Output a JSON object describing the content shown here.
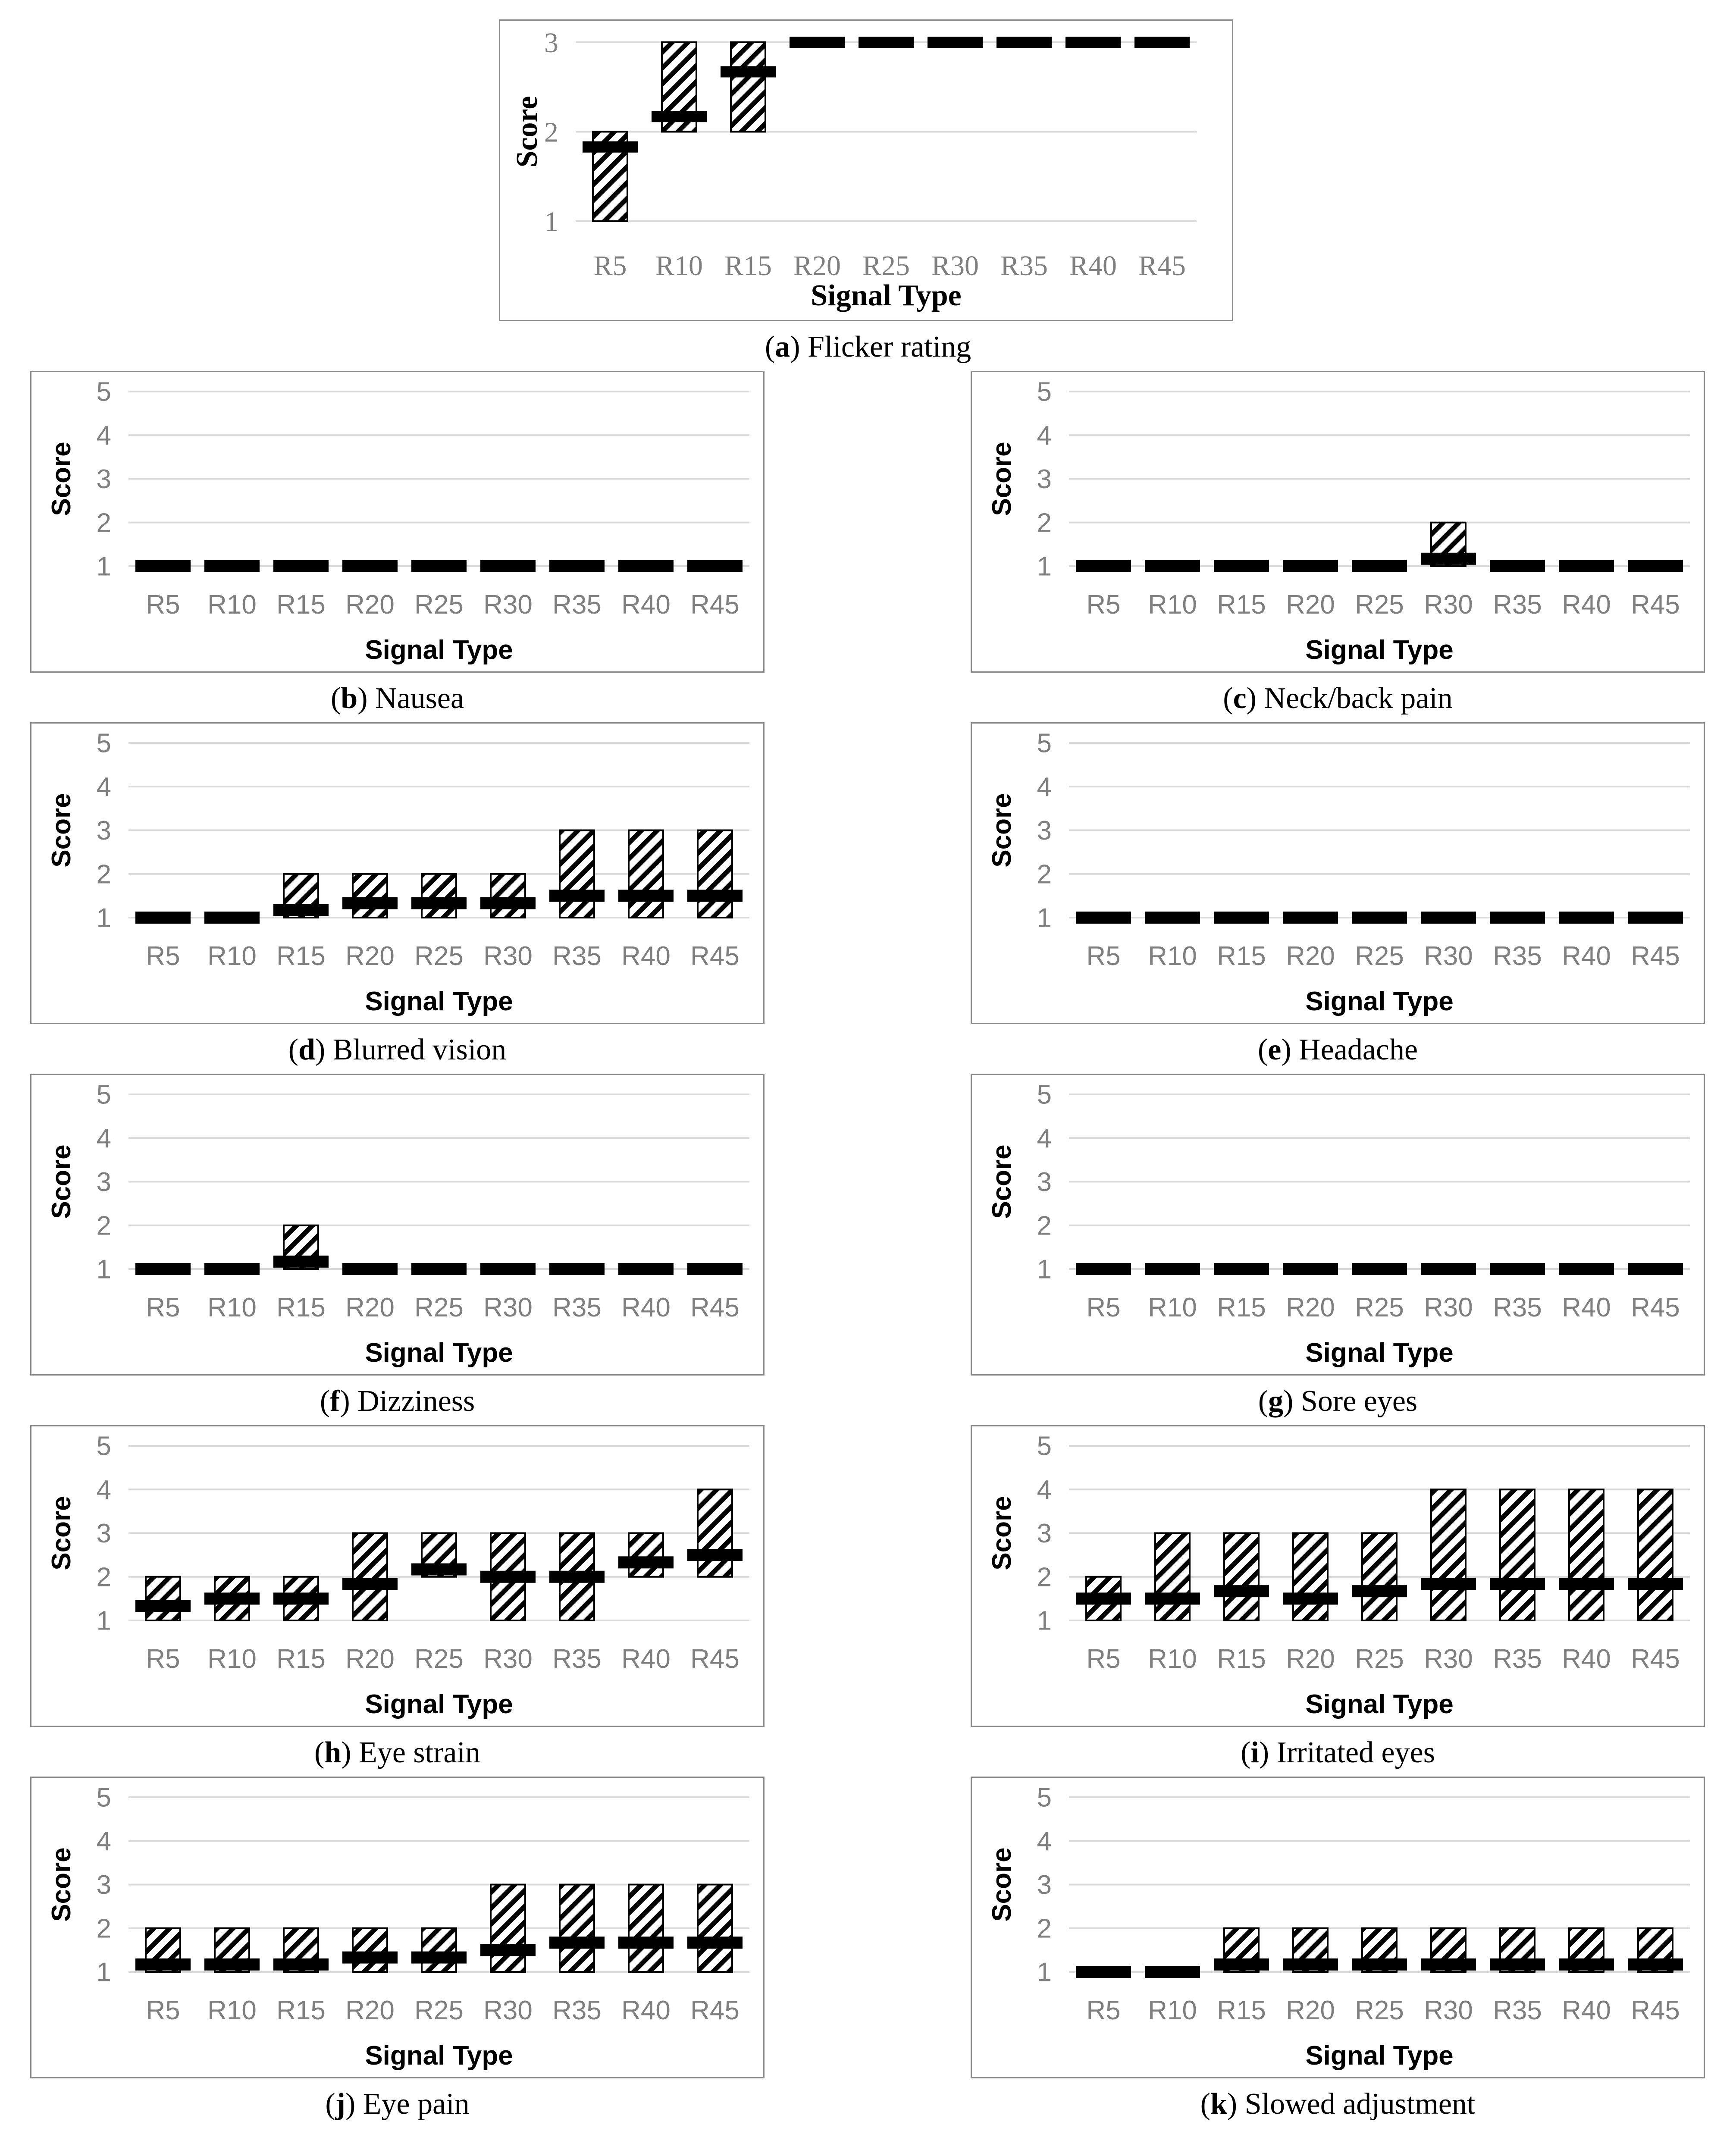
{
  "chart_data": [
    {
      "id": "a",
      "letter": "a",
      "name": "Flicker rating",
      "type": "range-bar",
      "categories": [
        "R5",
        "R10",
        "R15",
        "R20",
        "R25",
        "R30",
        "R35",
        "R40",
        "R45"
      ],
      "range_low": [
        1,
        2,
        2,
        3,
        3,
        3,
        3,
        3,
        3
      ],
      "range_high": [
        2,
        3,
        3,
        3,
        3,
        3,
        3,
        3,
        3
      ],
      "mean": [
        1.83,
        2.17,
        2.67,
        3,
        3,
        3,
        3,
        3,
        3
      ],
      "ylim": [
        1,
        3
      ],
      "yticks": [
        1,
        2,
        3
      ],
      "xlabel": "Signal Type",
      "ylabel": "Score"
    },
    {
      "id": "b",
      "letter": "b",
      "name": "Nausea",
      "type": "range-bar",
      "categories": [
        "R5",
        "R10",
        "R15",
        "R20",
        "R25",
        "R30",
        "R35",
        "R40",
        "R45"
      ],
      "range_low": [
        1,
        1,
        1,
        1,
        1,
        1,
        1,
        1,
        1
      ],
      "range_high": [
        1,
        1,
        1,
        1,
        1,
        1,
        1,
        1,
        1
      ],
      "mean": [
        1,
        1,
        1,
        1,
        1,
        1,
        1,
        1,
        1
      ],
      "ylim": [
        1,
        5
      ],
      "yticks": [
        1,
        2,
        3,
        4,
        5
      ],
      "xlabel": "Signal Type",
      "ylabel": "Score"
    },
    {
      "id": "c",
      "letter": "c",
      "name": "Neck/back pain",
      "type": "range-bar",
      "categories": [
        "R5",
        "R10",
        "R15",
        "R20",
        "R25",
        "R30",
        "R35",
        "R40",
        "R45"
      ],
      "range_low": [
        1,
        1,
        1,
        1,
        1,
        1,
        1,
        1,
        1
      ],
      "range_high": [
        1,
        1,
        1,
        1,
        1,
        2,
        1,
        1,
        1
      ],
      "mean": [
        1,
        1,
        1,
        1,
        1,
        1.17,
        1,
        1,
        1
      ],
      "ylim": [
        1,
        5
      ],
      "yticks": [
        1,
        2,
        3,
        4,
        5
      ],
      "xlabel": "Signal Type",
      "ylabel": "Score"
    },
    {
      "id": "d",
      "letter": "d",
      "name": "Blurred vision",
      "type": "range-bar",
      "categories": [
        "R5",
        "R10",
        "R15",
        "R20",
        "R25",
        "R30",
        "R35",
        "R40",
        "R45"
      ],
      "range_low": [
        1,
        1,
        1,
        1,
        1,
        1,
        1,
        1,
        1
      ],
      "range_high": [
        1,
        1,
        2,
        2,
        2,
        2,
        3,
        3,
        3
      ],
      "mean": [
        1,
        1,
        1.17,
        1.33,
        1.33,
        1.33,
        1.5,
        1.5,
        1.5
      ],
      "ylim": [
        1,
        5
      ],
      "yticks": [
        1,
        2,
        3,
        4,
        5
      ],
      "xlabel": "Signal Type",
      "ylabel": "Score"
    },
    {
      "id": "e",
      "letter": "e",
      "name": "Headache",
      "type": "range-bar",
      "categories": [
        "R5",
        "R10",
        "R15",
        "R20",
        "R25",
        "R30",
        "R35",
        "R40",
        "R45"
      ],
      "range_low": [
        1,
        1,
        1,
        1,
        1,
        1,
        1,
        1,
        1
      ],
      "range_high": [
        1,
        1,
        1,
        1,
        1,
        1,
        1,
        1,
        1
      ],
      "mean": [
        1,
        1,
        1,
        1,
        1,
        1,
        1,
        1,
        1
      ],
      "ylim": [
        1,
        5
      ],
      "yticks": [
        1,
        2,
        3,
        4,
        5
      ],
      "xlabel": "Signal Type",
      "ylabel": "Score"
    },
    {
      "id": "f",
      "letter": "f",
      "name": "Dizziness",
      "type": "range-bar",
      "categories": [
        "R5",
        "R10",
        "R15",
        "R20",
        "R25",
        "R30",
        "R35",
        "R40",
        "R45"
      ],
      "range_low": [
        1,
        1,
        1,
        1,
        1,
        1,
        1,
        1,
        1
      ],
      "range_high": [
        1,
        1,
        2,
        1,
        1,
        1,
        1,
        1,
        1
      ],
      "mean": [
        1,
        1,
        1.17,
        1,
        1,
        1,
        1,
        1,
        1
      ],
      "ylim": [
        1,
        5
      ],
      "yticks": [
        1,
        2,
        3,
        4,
        5
      ],
      "xlabel": "Signal Type",
      "ylabel": "Score"
    },
    {
      "id": "g",
      "letter": "g",
      "name": "Sore eyes",
      "type": "range-bar",
      "categories": [
        "R5",
        "R10",
        "R15",
        "R20",
        "R25",
        "R30",
        "R35",
        "R40",
        "R45"
      ],
      "range_low": [
        1,
        1,
        1,
        1,
        1,
        1,
        1,
        1,
        1
      ],
      "range_high": [
        1,
        1,
        1,
        1,
        1,
        1,
        1,
        1,
        1
      ],
      "mean": [
        1,
        1,
        1,
        1,
        1,
        1,
        1,
        1,
        1
      ],
      "ylim": [
        1,
        5
      ],
      "yticks": [
        1,
        2,
        3,
        4,
        5
      ],
      "xlabel": "Signal Type",
      "ylabel": "Score"
    },
    {
      "id": "h",
      "letter": "h",
      "name": "Eye strain",
      "type": "range-bar",
      "categories": [
        "R5",
        "R10",
        "R15",
        "R20",
        "R25",
        "R30",
        "R35",
        "R40",
        "R45"
      ],
      "range_low": [
        1,
        1,
        1,
        1,
        2,
        1,
        1,
        2,
        2
      ],
      "range_high": [
        2,
        2,
        2,
        3,
        3,
        3,
        3,
        3,
        4
      ],
      "mean": [
        1.33,
        1.5,
        1.5,
        1.83,
        2.17,
        2,
        2,
        2.33,
        2.5
      ],
      "ylim": [
        1,
        5
      ],
      "yticks": [
        1,
        2,
        3,
        4,
        5
      ],
      "xlabel": "Signal Type",
      "ylabel": "Score"
    },
    {
      "id": "i",
      "letter": "i",
      "name": "Irritated eyes",
      "type": "range-bar",
      "categories": [
        "R5",
        "R10",
        "R15",
        "R20",
        "R25",
        "R30",
        "R35",
        "R40",
        "R45"
      ],
      "range_low": [
        1,
        1,
        1,
        1,
        1,
        1,
        1,
        1,
        1
      ],
      "range_high": [
        2,
        3,
        3,
        3,
        3,
        4,
        4,
        4,
        4
      ],
      "mean": [
        1.5,
        1.5,
        1.67,
        1.5,
        1.67,
        1.83,
        1.83,
        1.83,
        1.83
      ],
      "ylim": [
        1,
        5
      ],
      "yticks": [
        1,
        2,
        3,
        4,
        5
      ],
      "xlabel": "Signal Type",
      "ylabel": "Score"
    },
    {
      "id": "j",
      "letter": "j",
      "name": "Eye pain",
      "type": "range-bar",
      "categories": [
        "R5",
        "R10",
        "R15",
        "R20",
        "R25",
        "R30",
        "R35",
        "R40",
        "R45"
      ],
      "range_low": [
        1,
        1,
        1,
        1,
        1,
        1,
        1,
        1,
        1
      ],
      "range_high": [
        2,
        2,
        2,
        2,
        2,
        3,
        3,
        3,
        3
      ],
      "mean": [
        1.17,
        1.17,
        1.17,
        1.33,
        1.33,
        1.5,
        1.67,
        1.67,
        1.67
      ],
      "ylim": [
        1,
        5
      ],
      "yticks": [
        1,
        2,
        3,
        4,
        5
      ],
      "xlabel": "Signal Type",
      "ylabel": "Score"
    },
    {
      "id": "k",
      "letter": "k",
      "name": "Slowed adjustment",
      "type": "range-bar",
      "categories": [
        "R5",
        "R10",
        "R15",
        "R20",
        "R25",
        "R30",
        "R35",
        "R40",
        "R45"
      ],
      "range_low": [
        1,
        1,
        1,
        1,
        1,
        1,
        1,
        1,
        1
      ],
      "range_high": [
        1,
        1,
        2,
        2,
        2,
        2,
        2,
        2,
        2
      ],
      "mean": [
        1,
        1,
        1.17,
        1.17,
        1.17,
        1.17,
        1.17,
        1.17,
        1.17
      ],
      "ylim": [
        1,
        5
      ],
      "yticks": [
        1,
        2,
        3,
        4,
        5
      ],
      "xlabel": "Signal Type",
      "ylabel": "Score"
    }
  ]
}
